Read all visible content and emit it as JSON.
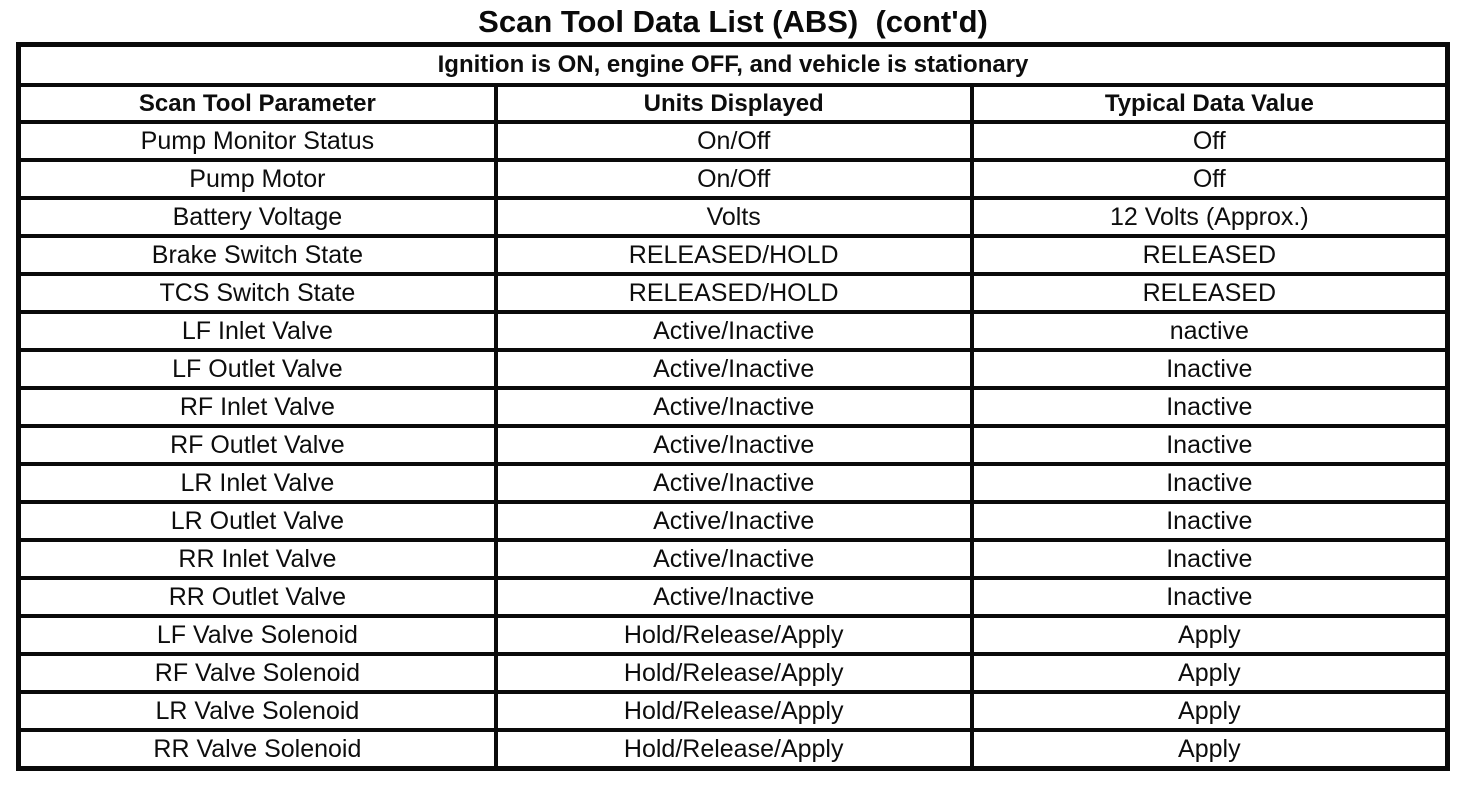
{
  "title": "Scan Tool Data List (ABS)  (cont'd)",
  "table": {
    "condition_header": "Ignition is ON, engine OFF, and vehicle is stationary",
    "columns": [
      "Scan Tool Parameter",
      "Units Displayed",
      "Typical Data Value"
    ],
    "rows": [
      [
        "Pump Monitor Status",
        "On/Off",
        "Off"
      ],
      [
        "Pump Motor",
        "On/Off",
        "Off"
      ],
      [
        "Battery Voltage",
        "Volts",
        "12 Volts (Approx.)"
      ],
      [
        "Brake Switch State",
        "RELEASED/HOLD",
        "RELEASED"
      ],
      [
        "TCS Switch State",
        "RELEASED/HOLD",
        "RELEASED"
      ],
      [
        "LF Inlet Valve",
        "Active/Inactive",
        "nactive"
      ],
      [
        "LF Outlet Valve",
        "Active/Inactive",
        "Inactive"
      ],
      [
        "RF Inlet Valve",
        "Active/Inactive",
        "Inactive"
      ],
      [
        "RF Outlet Valve",
        "Active/Inactive",
        "Inactive"
      ],
      [
        "LR Inlet Valve",
        "Active/Inactive",
        "Inactive"
      ],
      [
        "LR Outlet Valve",
        "Active/Inactive",
        "Inactive"
      ],
      [
        "RR Inlet Valve",
        "Active/Inactive",
        "Inactive"
      ],
      [
        "RR Outlet Valve",
        "Active/Inactive",
        "Inactive"
      ],
      [
        "LF Valve Solenoid",
        "Hold/Release/Apply",
        "Apply"
      ],
      [
        "RF Valve Solenoid",
        "Hold/Release/Apply",
        "Apply"
      ],
      [
        "LR Valve Solenoid",
        "Hold/Release/Apply",
        "Apply"
      ],
      [
        "RR Valve Solenoid",
        "Hold/Release/Apply",
        "Apply"
      ]
    ],
    "cell_names": [
      "parameter-cell",
      "units-cell",
      "value-cell"
    ]
  },
  "colors": {
    "ink": "#0a0a0a",
    "paper": "#ffffff"
  }
}
